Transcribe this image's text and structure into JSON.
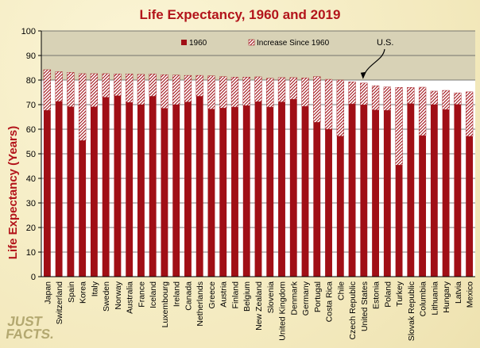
{
  "chart_data": {
    "type": "bar",
    "stacked": true,
    "title": "Life Expectancy, 1960 and 2019",
    "xlabel": "",
    "ylabel": "Life Expectancy (Years)",
    "ylim": [
      0,
      100
    ],
    "yticks": [
      0,
      10,
      20,
      30,
      40,
      50,
      60,
      70,
      80,
      90,
      100
    ],
    "categories": [
      "Japan",
      "Switzerland",
      "Spain",
      "Korea",
      "Italy",
      "Sweden",
      "Norway",
      "Australia",
      "France",
      "Iceland",
      "Luxembourg",
      "Ireland",
      "Canada",
      "Netherlands",
      "Greece",
      "Austria",
      "Finland",
      "Belgium",
      "New Zealand",
      "Slovenia",
      "United Kingdom",
      "Denmark",
      "Germany",
      "Portugal",
      "Costa Rica",
      "Chile",
      "Czech Republic",
      "United States",
      "Estonia",
      "Poland",
      "Turkey",
      "Slovak Republic",
      "Columbia",
      "Lithuania",
      "Hungary",
      "Latvia",
      "Mexico"
    ],
    "series": [
      {
        "name": "1960",
        "color": "#a00f16",
        "pattern": "solid",
        "values": [
          67.7,
          71.3,
          69.1,
          55.4,
          69.1,
          73.0,
          73.6,
          70.9,
          70.0,
          73.4,
          68.5,
          70.0,
          71.1,
          73.4,
          68.2,
          68.6,
          69.0,
          69.6,
          71.2,
          69.0,
          71.1,
          72.2,
          69.3,
          62.8,
          60.0,
          57.2,
          70.3,
          69.9,
          67.8,
          67.7,
          45.4,
          70.4,
          57.4,
          70.0,
          68.0,
          70.1,
          57.1
        ]
      },
      {
        "name": "Increase Since 1960",
        "color": "#a00f16",
        "pattern": "hatched",
        "values": [
          16.5,
          12.1,
          14.0,
          27.2,
          13.5,
          9.6,
          8.9,
          11.6,
          12.3,
          9.1,
          13.7,
          12.0,
          10.8,
          8.5,
          13.5,
          12.8,
          12.2,
          11.6,
          10.1,
          11.7,
          9.9,
          8.8,
          11.6,
          18.6,
          20.3,
          22.8,
          9.0,
          8.9,
          9.9,
          9.5,
          31.6,
          6.6,
          19.7,
          5.5,
          7.8,
          4.7,
          18.1
        ]
      }
    ],
    "legend": [
      "1960",
      "Increase Since 1960"
    ],
    "legend_position": "top",
    "annotation": {
      "text": "U.S.",
      "target": "United States"
    },
    "grid": true
  },
  "logo": {
    "line1": "JUST",
    "line2": "FACTS."
  }
}
